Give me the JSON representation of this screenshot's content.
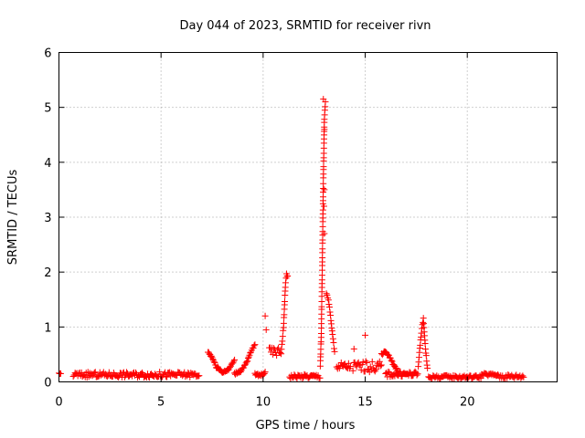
{
  "chart_data": {
    "type": "scatter",
    "title": "Day 044 of 2023, SRMTID for receiver rivn",
    "xlabel": "GPS time / hours",
    "ylabel": "SRMTID / TECUs",
    "xlim": [
      0,
      24.4
    ],
    "ylim": [
      0,
      6
    ],
    "xticks": [
      0,
      5,
      10,
      15,
      20
    ],
    "yticks": [
      0,
      1,
      2,
      3,
      4,
      5,
      6
    ],
    "grid": true,
    "marker": "plus",
    "series_color": "#ff0000",
    "segments": [
      {
        "x0": 0.0,
        "x1": 0.1,
        "base": 0.15,
        "amp": 0.01
      },
      {
        "x0": 0.7,
        "x1": 6.9,
        "base": 0.13,
        "amp": 0.05
      },
      {
        "x0": 10.3,
        "x1": 10.9,
        "base": 0.55,
        "amp": 0.08
      },
      {
        "x0": 11.3,
        "x1": 12.8,
        "base": 0.1,
        "amp": 0.04
      },
      {
        "x0": 13.6,
        "x1": 14.3,
        "base": 0.28,
        "amp": 0.08
      },
      {
        "x0": 14.4,
        "x1": 15.8,
        "base": 0.28,
        "amp": 0.1
      },
      {
        "x0": 16.0,
        "x1": 17.6,
        "base": 0.14,
        "amp": 0.05
      },
      {
        "x0": 18.1,
        "x1": 20.7,
        "base": 0.09,
        "amp": 0.03
      },
      {
        "x0": 20.7,
        "x1": 21.5,
        "base": 0.13,
        "amp": 0.03
      },
      {
        "x0": 21.5,
        "x1": 22.8,
        "base": 0.1,
        "amp": 0.04
      }
    ],
    "curves": [
      {
        "x": [
          7.3,
          7.5,
          7.7,
          8.0,
          8.3,
          8.6
        ],
        "y": [
          0.55,
          0.45,
          0.28,
          0.18,
          0.22,
          0.4
        ]
      },
      {
        "x": [
          8.6,
          8.9,
          9.2,
          9.4,
          9.6
        ],
        "y": [
          0.15,
          0.2,
          0.35,
          0.55,
          0.68
        ]
      },
      {
        "x": [
          9.6,
          9.8,
          10.0,
          10.1
        ],
        "y": [
          0.15,
          0.12,
          0.14,
          0.18
        ]
      },
      {
        "x": [
          10.9,
          11.0,
          11.05,
          11.1,
          11.15,
          11.2
        ],
        "y": [
          0.6,
          1.0,
          1.4,
          1.8,
          1.95,
          1.93
        ]
      },
      {
        "x": [
          12.8,
          12.85,
          12.9,
          12.95,
          13.0,
          13.05
        ],
        "y": [
          0.3,
          0.9,
          2.2,
          3.7,
          4.8,
          5.1
        ]
      },
      {
        "x": [
          13.1,
          13.2,
          13.3,
          13.4,
          13.5
        ],
        "y": [
          1.6,
          1.5,
          1.2,
          0.85,
          0.55
        ]
      },
      {
        "x": [
          15.8,
          16.0,
          16.2,
          16.4,
          16.6
        ],
        "y": [
          0.5,
          0.55,
          0.45,
          0.3,
          0.2
        ]
      },
      {
        "x": [
          17.6,
          17.75,
          17.85,
          17.95,
          18.05
        ],
        "y": [
          0.3,
          0.9,
          1.15,
          0.6,
          0.25
        ]
      }
    ],
    "spikes": [
      {
        "x": 10.1,
        "y": 1.2
      },
      {
        "x": 10.15,
        "y": 0.95
      },
      {
        "x": 12.95,
        "y": 5.15
      },
      {
        "x": 13.0,
        "y": 4.6
      },
      {
        "x": 13.0,
        "y": 3.5
      },
      {
        "x": 12.98,
        "y": 3.2
      },
      {
        "x": 13.0,
        "y": 2.7
      },
      {
        "x": 15.0,
        "y": 0.85
      },
      {
        "x": 14.45,
        "y": 0.6
      }
    ]
  }
}
